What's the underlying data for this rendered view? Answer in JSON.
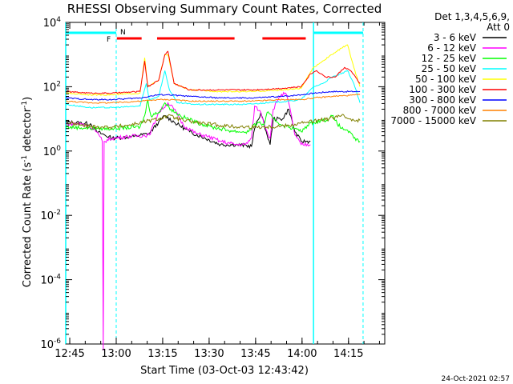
{
  "chart_data": {
    "type": "line",
    "title": "RHESSI Observing Summary Count Rates, Corrected",
    "xlabel": "Start Time (03-Oct-03 12:43:42)",
    "ylabel_main": "Corrected Count Rate (s",
    "ylabel_sup1": "-1",
    "ylabel_mid": " detector",
    "ylabel_sup2": "-1",
    "ylabel_end": ")",
    "x_unit": "minutes since 12:43:42",
    "xlim": [
      0,
      103
    ],
    "y_log_range": [
      -6,
      4
    ],
    "x_ticks": [
      {
        "label": "12:45",
        "m": 1.3
      },
      {
        "label": "13:00",
        "m": 16.3
      },
      {
        "label": "13:15",
        "m": 31.3
      },
      {
        "label": "13:30",
        "m": 46.3
      },
      {
        "label": "13:45",
        "m": 61.3
      },
      {
        "label": "14:00",
        "m": 76.3
      },
      {
        "label": "14:15",
        "m": 91.3
      }
    ],
    "y_ticks": [
      {
        "exp": 4,
        "base": "10",
        "sup": "4"
      },
      {
        "exp": 2,
        "base": "10",
        "sup": "2"
      },
      {
        "exp": 0,
        "base": "10",
        "sup": "0"
      },
      {
        "exp": -2,
        "base": "10",
        "sup": "-2"
      },
      {
        "exp": -4,
        "base": "10",
        "sup": "-4"
      },
      {
        "exp": -6,
        "base": "10",
        "sup": "-6"
      }
    ],
    "legend": {
      "header": "Det 1,3,4,5,6,9,",
      "subheader": "Att 0",
      "placement": "right"
    },
    "series": [
      {
        "name": "3 - 6 keV",
        "color": "#000000",
        "points": [
          [
            0,
            0.9
          ],
          [
            8,
            0.85
          ],
          [
            10,
            0.6
          ],
          [
            15,
            0.4
          ],
          [
            22,
            0.45
          ],
          [
            27,
            0.55
          ],
          [
            30,
            0.9
          ],
          [
            32,
            1.1
          ],
          [
            35,
            0.9
          ],
          [
            40,
            0.6
          ],
          [
            45,
            0.4
          ],
          [
            50,
            0.2
          ],
          [
            55,
            0.2
          ],
          [
            60,
            0.15
          ],
          [
            61,
            0.7
          ],
          [
            63,
            1.2
          ],
          [
            65,
            0.5
          ],
          [
            66,
            0.2
          ],
          [
            67,
            1.0
          ],
          [
            70,
            1.0
          ],
          [
            72,
            1.3
          ],
          [
            74,
            0.6
          ],
          [
            76,
            0.3
          ],
          [
            79,
            0.3
          ]
        ]
      },
      {
        "name": "6 - 12 keV",
        "color": "#ff00ff",
        "points": [
          [
            0,
            0.85
          ],
          [
            5,
            0.85
          ],
          [
            9,
            0.7
          ],
          [
            11,
            0.45
          ],
          [
            11.8,
            0.3
          ],
          [
            12.1,
            -6.2
          ],
          [
            12.4,
            0.3
          ],
          [
            15,
            0.4
          ],
          [
            20,
            0.45
          ],
          [
            27,
            0.5
          ],
          [
            30,
            1.2
          ],
          [
            33,
            1.5
          ],
          [
            35,
            1.3
          ],
          [
            38,
            0.8
          ],
          [
            42,
            0.55
          ],
          [
            46,
            0.45
          ],
          [
            50,
            0.3
          ],
          [
            55,
            0.2
          ],
          [
            58,
            0.2
          ],
          [
            60,
            0.4
          ],
          [
            61,
            1.4
          ],
          [
            63,
            1.2
          ],
          [
            65,
            0.6
          ],
          [
            66,
            0.4
          ],
          [
            67,
            1.3
          ],
          [
            69,
            1.7
          ],
          [
            71,
            1.8
          ],
          [
            72,
            1.5
          ],
          [
            74,
            0.5
          ],
          [
            76,
            0.2
          ],
          [
            79,
            0.2
          ]
        ]
      },
      {
        "name": "12 - 25 keV",
        "color": "#00ff00",
        "points": [
          [
            0,
            0.75
          ],
          [
            10,
            0.7
          ],
          [
            15,
            0.7
          ],
          [
            24,
            0.75
          ],
          [
            25.5,
            1.1
          ],
          [
            26.5,
            1.6
          ],
          [
            27.5,
            1.1
          ],
          [
            30,
            1.2
          ],
          [
            32,
            1.5
          ],
          [
            34,
            1.3
          ],
          [
            37,
            1.1
          ],
          [
            42,
            0.9
          ],
          [
            47,
            0.75
          ],
          [
            52,
            0.65
          ],
          [
            56,
            0.6
          ],
          [
            59,
            0.6
          ],
          [
            62,
            0.9
          ],
          [
            64,
            0.8
          ],
          [
            65,
            1.2
          ],
          [
            67,
            1.0
          ],
          [
            70,
            0.8
          ],
          [
            74,
            0.7
          ],
          [
            76,
            0.6
          ],
          [
            78,
            0.8
          ],
          [
            80,
            0.9
          ],
          [
            83,
            0.95
          ],
          [
            85,
            1.0
          ],
          [
            86,
            1.1
          ],
          [
            87,
            0.95
          ],
          [
            89,
            0.7
          ],
          [
            91,
            0.65
          ],
          [
            93,
            0.4
          ],
          [
            95,
            0.3
          ]
        ]
      },
      {
        "name": "25 - 50 keV",
        "color": "#00ffff",
        "points": [
          [
            0,
            1.45
          ],
          [
            8,
            1.35
          ],
          [
            15,
            1.35
          ],
          [
            24,
            1.4
          ],
          [
            26,
            2.1
          ],
          [
            27,
            1.6
          ],
          [
            30,
            1.7
          ],
          [
            32,
            2.5
          ],
          [
            33.5,
            1.9
          ],
          [
            36,
            1.5
          ],
          [
            42,
            1.45
          ],
          [
            50,
            1.45
          ],
          [
            58,
            1.45
          ],
          [
            65,
            1.5
          ],
          [
            72,
            1.55
          ],
          [
            76,
            1.6
          ],
          [
            80,
            2.0
          ],
          [
            83,
            2.1
          ],
          [
            86,
            2.3
          ],
          [
            89,
            2.4
          ],
          [
            91,
            2.5
          ],
          [
            93,
            2.1
          ],
          [
            95,
            1.5
          ]
        ]
      },
      {
        "name": "50 - 100 keV",
        "color": "#ffff00",
        "points": [
          [
            0,
            1.8
          ],
          [
            8,
            1.75
          ],
          [
            15,
            1.75
          ],
          [
            24,
            1.8
          ],
          [
            25.5,
            2.9
          ],
          [
            26.5,
            2.0
          ],
          [
            30,
            2.2
          ],
          [
            32,
            3.0
          ],
          [
            33,
            3.0
          ],
          [
            35,
            2.1
          ],
          [
            40,
            1.9
          ],
          [
            50,
            1.85
          ],
          [
            60,
            1.85
          ],
          [
            70,
            1.9
          ],
          [
            76,
            1.95
          ],
          [
            80,
            2.6
          ],
          [
            83,
            2.8
          ],
          [
            86,
            3.0
          ],
          [
            89,
            3.2
          ],
          [
            91,
            3.3
          ],
          [
            93,
            2.6
          ],
          [
            95,
            2.0
          ]
        ]
      },
      {
        "name": "100 - 300 keV",
        "color": "#ff0000",
        "points": [
          [
            0,
            1.85
          ],
          [
            8,
            1.8
          ],
          [
            15,
            1.8
          ],
          [
            24,
            1.85
          ],
          [
            25.5,
            2.8
          ],
          [
            26.5,
            2.0
          ],
          [
            30,
            2.2
          ],
          [
            32,
            3.0
          ],
          [
            33,
            3.1
          ],
          [
            35,
            2.1
          ],
          [
            40,
            1.9
          ],
          [
            50,
            1.9
          ],
          [
            60,
            1.9
          ],
          [
            70,
            1.95
          ],
          [
            76,
            2.0
          ],
          [
            79,
            2.4
          ],
          [
            81,
            2.5
          ],
          [
            84,
            2.3
          ],
          [
            87,
            2.3
          ],
          [
            90,
            2.6
          ],
          [
            92,
            2.5
          ],
          [
            95,
            2.1
          ]
        ]
      },
      {
        "name": "300 - 800 keV",
        "color": "#0000ff",
        "points": [
          [
            0,
            1.65
          ],
          [
            8,
            1.6
          ],
          [
            15,
            1.6
          ],
          [
            24,
            1.65
          ],
          [
            30,
            1.75
          ],
          [
            33,
            1.75
          ],
          [
            40,
            1.7
          ],
          [
            50,
            1.65
          ],
          [
            60,
            1.65
          ],
          [
            70,
            1.7
          ],
          [
            76,
            1.75
          ],
          [
            80,
            1.8
          ],
          [
            86,
            1.85
          ],
          [
            95,
            1.85
          ]
        ]
      },
      {
        "name": "800 - 7000 keV",
        "color": "#ff8000",
        "points": [
          [
            0,
            1.55
          ],
          [
            8,
            1.5
          ],
          [
            15,
            1.5
          ],
          [
            24,
            1.55
          ],
          [
            30,
            1.6
          ],
          [
            35,
            1.6
          ],
          [
            40,
            1.55
          ],
          [
            50,
            1.55
          ],
          [
            60,
            1.55
          ],
          [
            70,
            1.6
          ],
          [
            76,
            1.6
          ],
          [
            80,
            1.65
          ],
          [
            86,
            1.7
          ],
          [
            95,
            1.75
          ]
        ]
      },
      {
        "name": "7000 - 15000 keV",
        "color": "#808000",
        "points": [
          [
            0,
            0.9
          ],
          [
            5,
            0.8
          ],
          [
            10,
            0.75
          ],
          [
            15,
            0.75
          ],
          [
            20,
            0.8
          ],
          [
            25,
            0.9
          ],
          [
            30,
            1.0
          ],
          [
            33,
            1.1
          ],
          [
            38,
            0.95
          ],
          [
            45,
            0.85
          ],
          [
            55,
            0.75
          ],
          [
            65,
            0.75
          ],
          [
            72,
            0.8
          ],
          [
            78,
            0.9
          ],
          [
            85,
            1.0
          ],
          [
            89,
            1.1
          ],
          [
            92,
            1.0
          ],
          [
            95,
            0.95
          ]
        ]
      }
    ],
    "annotations": {
      "night_label": "N",
      "flare_label": "F",
      "night_intervals": [
        [
          0,
          16.3
        ],
        [
          80,
          96
        ]
      ],
      "flare_intervals": [
        [
          16.5,
          24.5
        ],
        [
          29.5,
          54.5
        ],
        [
          63.5,
          77.5
        ]
      ],
      "cyan_vlines": [
        0,
        16.3,
        80,
        96
      ]
    },
    "grid": false
  },
  "footer": {
    "timestamp": "24-Oct-2021 02:57"
  }
}
